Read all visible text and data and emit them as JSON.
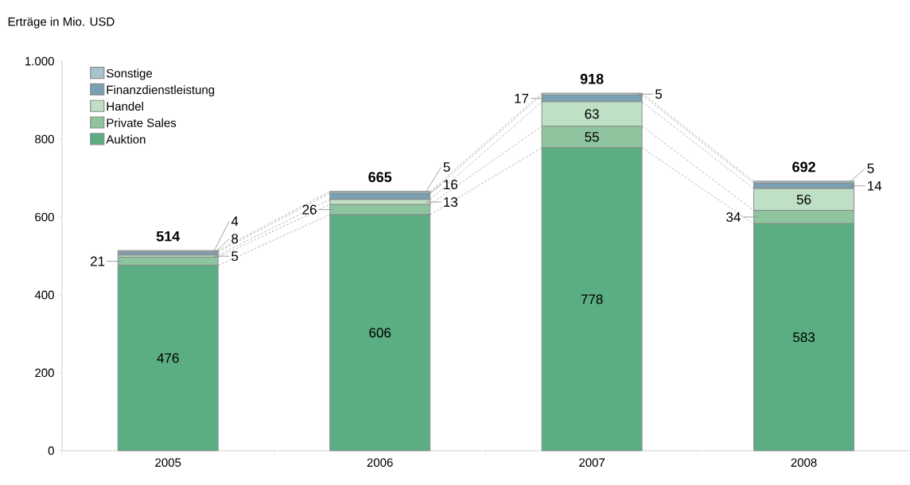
{
  "chart_data": {
    "type": "bar",
    "stacked": true,
    "ylabel": "Erträge in Mio. USD",
    "categories": [
      "2005",
      "2006",
      "2007",
      "2008"
    ],
    "series": [
      {
        "name": "Auktion",
        "color": "#5aae82",
        "values": [
          476,
          606,
          778,
          583
        ]
      },
      {
        "name": "Private Sales",
        "color": "#8fc59e",
        "values": [
          21,
          26,
          55,
          34
        ]
      },
      {
        "name": "Handel",
        "color": "#bfe0c5",
        "values": [
          5,
          13,
          63,
          56
        ]
      },
      {
        "name": "Finanzdienstleistung",
        "color": "#7aa0b3",
        "values": [
          8,
          16,
          17,
          14
        ]
      },
      {
        "name": "Sonstige",
        "color": "#a8c4cf",
        "values": [
          4,
          5,
          5,
          5
        ]
      }
    ],
    "ylim": [
      0,
      1000
    ],
    "yticks": [
      0,
      200,
      400,
      600,
      800,
      {
        "value": 1000,
        "label": "1.000"
      }
    ],
    "data_labels": true,
    "totals": [
      "514",
      "665",
      "918",
      "692"
    ],
    "legend": "top left"
  }
}
